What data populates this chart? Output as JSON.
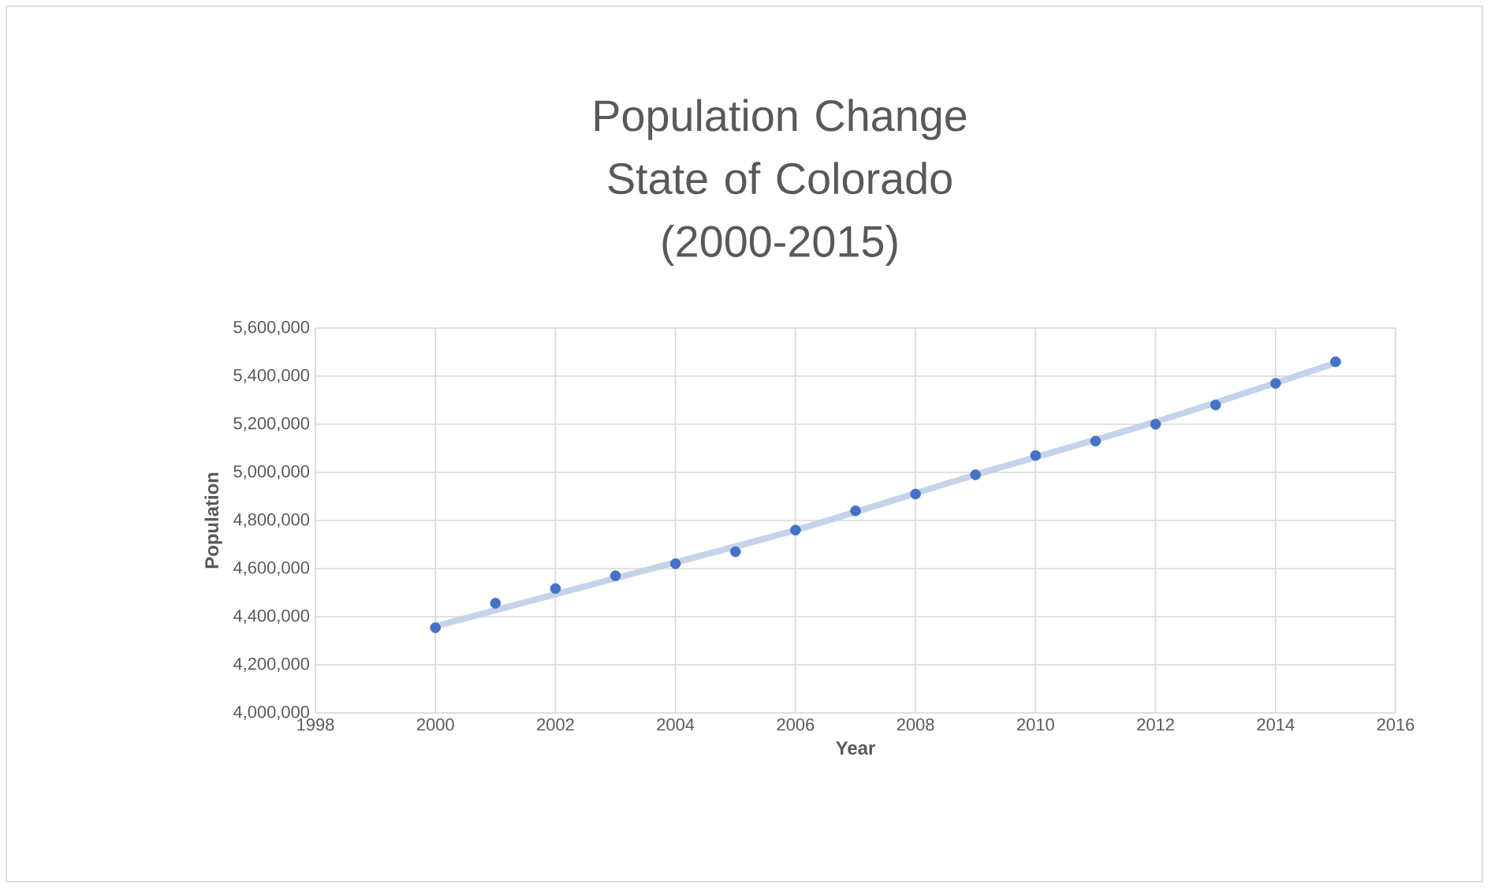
{
  "chart_data": {
    "type": "scatter",
    "title": "Population Change State of Colorado (2000-2015)",
    "xlabel": "Year",
    "ylabel": "Population",
    "x": [
      2000,
      2001,
      2002,
      2003,
      2004,
      2005,
      2006,
      2007,
      2008,
      2009,
      2010,
      2011,
      2012,
      2013,
      2014,
      2015
    ],
    "series": [
      {
        "color": "#4472c4",
        "values": [
          4354000,
          4456000,
          4517000,
          4570000,
          4620000,
          4670000,
          4760000,
          4840000,
          4910000,
          4990000,
          5070000,
          5130000,
          5200000,
          5280000,
          5370000,
          5460000
        ]
      },
      {
        "type": "line",
        "marker": "none",
        "color": "#c5d3ea",
        "x": [
          2000,
          2003,
          2006,
          2009,
          2012,
          2015
        ],
        "values": [
          4360000,
          4560000,
          4760000,
          4990000,
          5210000,
          5455000
        ]
      }
    ],
    "xlim": [
      1998,
      2016
    ],
    "xticks": [
      1998,
      2000,
      2002,
      2004,
      2006,
      2008,
      2010,
      2012,
      2014,
      2016
    ],
    "ylim": [
      4000000,
      5600000
    ],
    "yticks": [
      {
        "value": 4000000,
        "label": "4,000,000"
      },
      {
        "value": 4200000,
        "label": "4,200,000"
      },
      {
        "value": 4400000,
        "label": "4,400,000"
      },
      {
        "value": 4600000,
        "label": "4,600,000"
      },
      {
        "value": 4800000,
        "label": "4,800,000"
      },
      {
        "value": 5000000,
        "label": "5,000,000"
      },
      {
        "value": 5200000,
        "label": "5,200,000"
      },
      {
        "value": 5400000,
        "label": "5,400,000"
      },
      {
        "value": 5600000,
        "label": "5,600,000"
      }
    ],
    "grid": true,
    "marker": "circle"
  }
}
